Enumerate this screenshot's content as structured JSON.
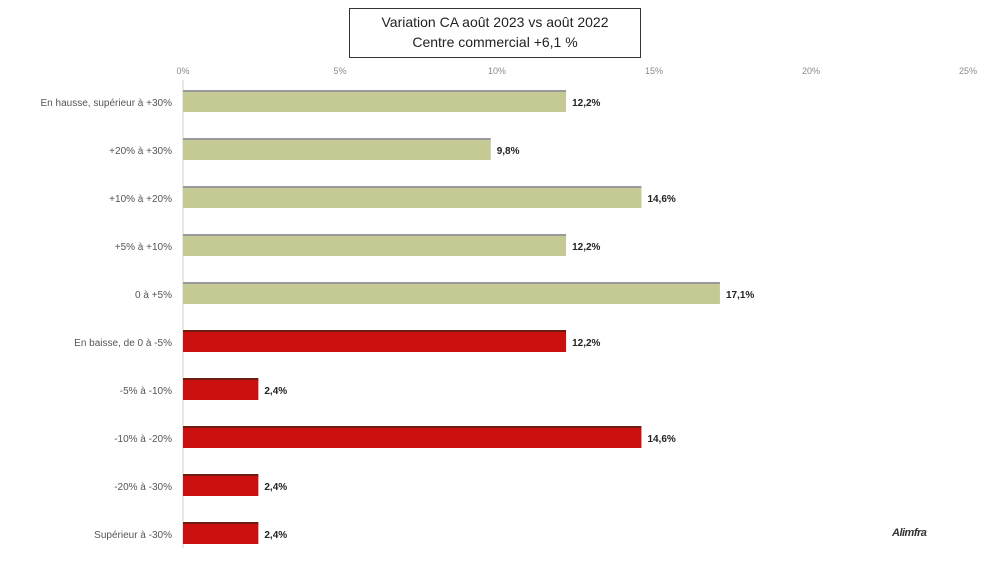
{
  "chart_data": {
    "type": "bar",
    "orientation": "horizontal",
    "title": "Variation CA août 2023 vs août 2022",
    "subtitle": "Centre commercial +6,1 %",
    "xlim": [
      0,
      25
    ],
    "x_ticks": [
      "0%",
      "5%",
      "10%",
      "15%",
      "20%",
      "25%"
    ],
    "categories": [
      "En hausse, supérieur à +30%",
      "+20% à +30%",
      "+10% à +20%",
      "+5% à +10%",
      "0 à +5%",
      "En baisse, de 0 à -5%",
      "-5% à -10%",
      "-10% à -20%",
      "-20% à -30%",
      "Supérieur à -30%"
    ],
    "values": [
      12.2,
      9.8,
      14.6,
      12.2,
      17.1,
      12.2,
      2.4,
      14.6,
      2.4,
      2.4
    ],
    "value_labels": [
      "12,2%",
      "9,8%",
      "14,6%",
      "12,2%",
      "17,1%",
      "12,2%",
      "2,4%",
      "14,6%",
      "2,4%",
      "2,4%"
    ],
    "colors": {
      "hausse": "#c5ca95",
      "baisse": "#cc1010"
    },
    "grid": false,
    "legend": "none"
  },
  "logo_text": "Alimfra"
}
